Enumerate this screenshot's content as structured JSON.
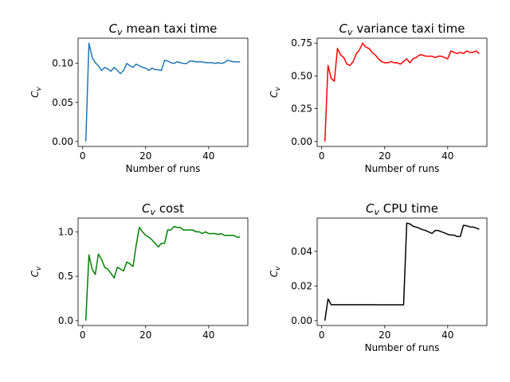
{
  "chart_data": [
    {
      "type": "line",
      "title": "Cv mean taxi time",
      "title_prefix": "C",
      "title_sub": "v",
      "title_suffix": " mean taxi time",
      "xlabel": "Number of runs",
      "ylabel_main": "C",
      "ylabel_sub": "v",
      "xlim": [
        -1.45,
        52.45
      ],
      "ylim": [
        -0.0063,
        0.1323
      ],
      "xticks": [
        0,
        20,
        40
      ],
      "xtick_labels": [
        "0",
        "20",
        "40"
      ],
      "yticks": [
        0,
        0.05,
        0.1
      ],
      "ytick_labels": [
        "0.00",
        "0.05",
        "0.10"
      ],
      "series": [
        {
          "color": "#1f77b4",
          "x": [
            1,
            2,
            3,
            4,
            5,
            6,
            7,
            8,
            9,
            10,
            11,
            12,
            13,
            14,
            15,
            16,
            17,
            18,
            19,
            20,
            21,
            22,
            23,
            24,
            25,
            26,
            27,
            28,
            29,
            30,
            31,
            32,
            33,
            34,
            35,
            36,
            37,
            38,
            39,
            40,
            41,
            42,
            43,
            44,
            45,
            46,
            47,
            48,
            49,
            50
          ],
          "y": [
            0.0,
            0.126,
            0.108,
            0.101,
            0.097,
            0.091,
            0.095,
            0.093,
            0.09,
            0.095,
            0.091,
            0.087,
            0.091,
            0.1,
            0.097,
            0.095,
            0.099,
            0.097,
            0.095,
            0.094,
            0.091,
            0.094,
            0.092,
            0.092,
            0.091,
            0.104,
            0.103,
            0.101,
            0.1,
            0.102,
            0.101,
            0.1,
            0.1,
            0.103,
            0.103,
            0.102,
            0.102,
            0.102,
            0.101,
            0.101,
            0.101,
            0.1,
            0.101,
            0.1,
            0.101,
            0.104,
            0.103,
            0.102,
            0.102,
            0.102
          ]
        }
      ],
      "grid": false
    },
    {
      "type": "line",
      "title": "Cv variance taxi time",
      "title_prefix": "C",
      "title_sub": "v",
      "title_suffix": " variance taxi time",
      "xlabel": "Number of runs",
      "ylabel_main": "C",
      "ylabel_sub": "v",
      "xlim": [
        -1.45,
        52.45
      ],
      "ylim": [
        -0.0375,
        0.7875
      ],
      "xticks": [
        0,
        20,
        40
      ],
      "xtick_labels": [
        "0",
        "20",
        "40"
      ],
      "yticks": [
        0,
        0.25,
        0.5,
        0.75
      ],
      "ytick_labels": [
        "0.00",
        "0.25",
        "0.50",
        "0.75"
      ],
      "series": [
        {
          "color": "#ff0000",
          "x": [
            1,
            2,
            3,
            4,
            5,
            6,
            7,
            8,
            9,
            10,
            11,
            12,
            13,
            14,
            15,
            16,
            17,
            18,
            19,
            20,
            21,
            22,
            23,
            24,
            25,
            26,
            27,
            28,
            29,
            30,
            31,
            32,
            33,
            34,
            35,
            36,
            37,
            38,
            39,
            40,
            41,
            42,
            43,
            44,
            45,
            46,
            47,
            48,
            49,
            50
          ],
          "y": [
            0.0,
            0.58,
            0.48,
            0.46,
            0.71,
            0.66,
            0.64,
            0.59,
            0.58,
            0.61,
            0.67,
            0.7,
            0.75,
            0.72,
            0.71,
            0.68,
            0.66,
            0.63,
            0.61,
            0.6,
            0.6,
            0.61,
            0.6,
            0.6,
            0.59,
            0.61,
            0.63,
            0.6,
            0.63,
            0.64,
            0.66,
            0.66,
            0.65,
            0.65,
            0.65,
            0.64,
            0.65,
            0.65,
            0.64,
            0.63,
            0.69,
            0.68,
            0.67,
            0.68,
            0.67,
            0.69,
            0.68,
            0.68,
            0.69,
            0.67
          ]
        }
      ],
      "grid": false
    },
    {
      "type": "line",
      "title": "Cv cost",
      "title_prefix": "C",
      "title_sub": "v",
      "title_suffix": " cost",
      "xlabel": "",
      "ylabel_main": "C",
      "ylabel_sub": "v",
      "xlim": [
        -1.45,
        52.45
      ],
      "ylim": [
        -0.055,
        1.155
      ],
      "xticks": [
        0,
        20,
        40
      ],
      "xtick_labels": [
        "0",
        "20",
        "40"
      ],
      "yticks": [
        0,
        0.5,
        1.0
      ],
      "ytick_labels": [
        "0.0",
        "0.5",
        "1.0"
      ],
      "series": [
        {
          "color": "#008000",
          "x": [
            1,
            2,
            3,
            4,
            5,
            6,
            7,
            8,
            9,
            10,
            11,
            12,
            13,
            14,
            15,
            16,
            17,
            18,
            19,
            20,
            21,
            22,
            23,
            24,
            25,
            26,
            27,
            28,
            29,
            30,
            31,
            32,
            33,
            34,
            35,
            36,
            37,
            38,
            39,
            40,
            41,
            42,
            43,
            44,
            45,
            46,
            47,
            48,
            49,
            50
          ],
          "y": [
            0.0,
            0.74,
            0.58,
            0.52,
            0.75,
            0.69,
            0.6,
            0.58,
            0.53,
            0.48,
            0.6,
            0.58,
            0.56,
            0.66,
            0.64,
            0.61,
            0.85,
            1.05,
            1.0,
            0.96,
            0.94,
            0.91,
            0.87,
            0.83,
            0.87,
            0.87,
            1.02,
            1.02,
            1.06,
            1.05,
            1.05,
            1.02,
            1.02,
            1.02,
            1.02,
            1.0,
            1.0,
            0.98,
            1.0,
            0.98,
            0.98,
            0.98,
            0.97,
            0.98,
            0.96,
            0.96,
            0.96,
            0.96,
            0.94,
            0.94
          ]
        }
      ],
      "grid": false
    },
    {
      "type": "line",
      "title": "Cv CPU time",
      "title_prefix": "C",
      "title_sub": "v",
      "title_suffix": " CPU time",
      "xlabel": "Number of runs",
      "ylabel_main": "C",
      "ylabel_sub": "v",
      "xlim": [
        -1.45,
        52.45
      ],
      "ylim": [
        -0.00282,
        0.0592
      ],
      "xticks": [
        0,
        20,
        40
      ],
      "xtick_labels": [
        "0",
        "20",
        "40"
      ],
      "yticks": [
        0,
        0.02,
        0.04
      ],
      "ytick_labels": [
        "0.00",
        "0.02",
        "0.04"
      ],
      "series": [
        {
          "color": "#000000",
          "x": [
            1,
            2,
            3,
            4,
            5,
            6,
            7,
            8,
            9,
            10,
            11,
            12,
            13,
            14,
            15,
            16,
            17,
            18,
            19,
            20,
            21,
            22,
            23,
            24,
            25,
            26,
            27,
            28,
            29,
            30,
            31,
            32,
            33,
            34,
            35,
            36,
            37,
            38,
            39,
            40,
            41,
            42,
            43,
            44,
            45,
            46,
            47,
            48,
            49,
            50
          ],
          "y": [
            0.0,
            0.0125,
            0.0092,
            0.0092,
            0.0092,
            0.0092,
            0.0092,
            0.0092,
            0.0092,
            0.0092,
            0.0092,
            0.0092,
            0.0092,
            0.0092,
            0.0092,
            0.0092,
            0.0092,
            0.0091,
            0.0091,
            0.0091,
            0.0091,
            0.0091,
            0.0091,
            0.0091,
            0.0091,
            0.0091,
            0.0563,
            0.0558,
            0.0545,
            0.054,
            0.0533,
            0.0525,
            0.052,
            0.0512,
            0.0503,
            0.052,
            0.052,
            0.0513,
            0.0506,
            0.0498,
            0.0494,
            0.0494,
            0.0485,
            0.0486,
            0.055,
            0.0548,
            0.0541,
            0.054,
            0.0535,
            0.0527
          ]
        }
      ],
      "grid": false
    }
  ],
  "panel_order": [
    "top-left",
    "top-right",
    "bottom-left",
    "bottom-right"
  ]
}
